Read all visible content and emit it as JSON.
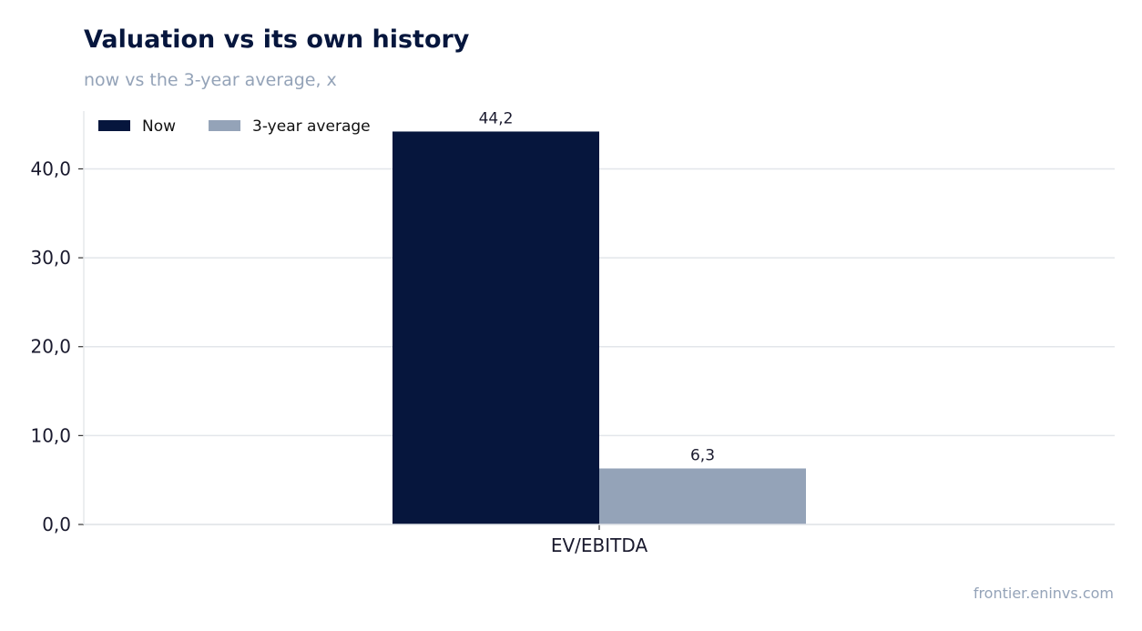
{
  "header": {
    "title": "Valuation vs its own history",
    "subtitle": "now vs the 3-year average, x"
  },
  "footer": {
    "watermark": "frontier.eninvs.com"
  },
  "chart_data": {
    "type": "bar",
    "categories": [
      "EV/EBITDA"
    ],
    "series": [
      {
        "name": "Now",
        "values": [
          44.2
        ],
        "labels": [
          "44,2"
        ],
        "color": "#06163d"
      },
      {
        "name": "3-year average",
        "values": [
          6.3
        ],
        "labels": [
          "6,3"
        ],
        "color": "#94a3b8"
      }
    ],
    "title": "Valuation vs its own history",
    "subtitle": "now vs the 3-year average, x",
    "xlabel": "",
    "ylabel": "",
    "ylim": [
      0,
      46.5
    ],
    "yticks": [
      0,
      10,
      20,
      30,
      40
    ],
    "ytick_labels": [
      "0,0",
      "10,0",
      "20,0",
      "30,0",
      "40,0"
    ],
    "grid": "horizontal",
    "legend": "top-left"
  }
}
